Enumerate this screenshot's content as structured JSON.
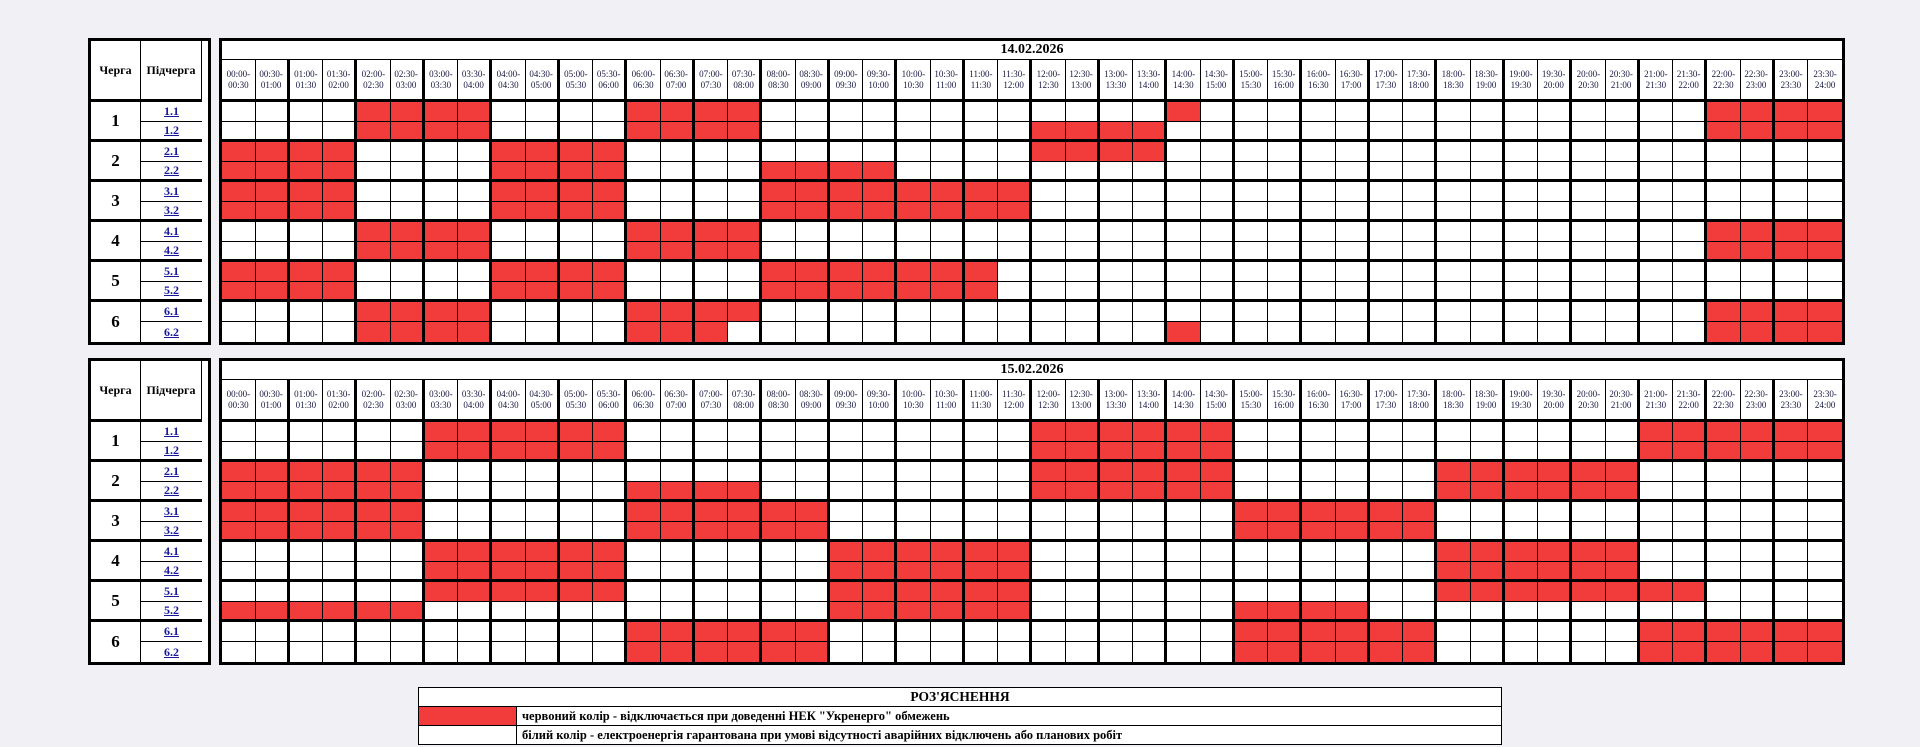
{
  "columns": {
    "queue_header": "Черга",
    "subqueue_header": "Підчерга"
  },
  "colors": {
    "outage_red": "#f23c3c",
    "guaranteed_white": "#ffffff",
    "page_bg": "#f0f0f5"
  },
  "legend": {
    "title": "РОЗ'ЯСНЕННЯ",
    "rows": [
      {
        "swatch": "#f23c3c",
        "text": "червоний колір - відключається при доведенні НЕК \"Укренерго\" обмежень"
      },
      {
        "swatch": "#ffffff",
        "text": "білий колір - електроенергія гарантована при умові відсутності аварійних відключень або планових робіт"
      }
    ]
  },
  "chart_data": {
    "type": "heatmap",
    "slot_minutes": 30,
    "slots_per_day": 48,
    "time_points": [
      "00:00",
      "00:30",
      "01:00",
      "01:30",
      "02:00",
      "02:30",
      "03:00",
      "03:30",
      "04:00",
      "04:30",
      "05:00",
      "05:30",
      "06:00",
      "06:30",
      "07:00",
      "07:30",
      "08:00",
      "08:30",
      "09:00",
      "09:30",
      "10:00",
      "10:30",
      "11:00",
      "11:30",
      "12:00",
      "12:30",
      "13:00",
      "13:30",
      "14:00",
      "14:30",
      "15:00",
      "15:30",
      "16:00",
      "16:30",
      "17:00",
      "17:30",
      "18:00",
      "18:30",
      "19:00",
      "19:30",
      "20:00",
      "20:30",
      "21:00",
      "21:30",
      "22:00",
      "22:30",
      "23:00",
      "23:30",
      "24:00"
    ],
    "tables": [
      {
        "date": "14.02.2026",
        "queues": [
          {
            "number": "1",
            "subs": [
              {
                "label": "1.1",
                "red_ranges": [
                  [
                    4,
                    7
                  ],
                  [
                    12,
                    15
                  ],
                  [
                    28,
                    28
                  ],
                  [
                    44,
                    47
                  ]
                ],
                "intervals": "02:00-04:00, 06:00-08:00, 14:00-14:30, 22:00-24:00"
              },
              {
                "label": "1.2",
                "red_ranges": [
                  [
                    4,
                    7
                  ],
                  [
                    12,
                    15
                  ],
                  [
                    24,
                    27
                  ],
                  [
                    44,
                    47
                  ]
                ],
                "intervals": "02:00-04:00, 06:00-08:00, 12:00-14:00, 22:00-24:00"
              }
            ]
          },
          {
            "number": "2",
            "subs": [
              {
                "label": "2.1",
                "red_ranges": [
                  [
                    0,
                    3
                  ],
                  [
                    8,
                    11
                  ],
                  [
                    24,
                    27
                  ]
                ],
                "intervals": "00:00-02:00, 04:00-06:00, 12:00-14:00"
              },
              {
                "label": "2.2",
                "red_ranges": [
                  [
                    0,
                    3
                  ],
                  [
                    8,
                    11
                  ],
                  [
                    16,
                    19
                  ]
                ],
                "intervals": "00:00-02:00, 04:00-06:00, 08:00-10:00"
              }
            ]
          },
          {
            "number": "3",
            "subs": [
              {
                "label": "3.1",
                "red_ranges": [
                  [
                    0,
                    3
                  ],
                  [
                    8,
                    11
                  ],
                  [
                    16,
                    23
                  ]
                ],
                "intervals": "00:00-02:00, 04:00-06:00, 08:00-12:00"
              },
              {
                "label": "3.2",
                "red_ranges": [
                  [
                    0,
                    3
                  ],
                  [
                    8,
                    11
                  ],
                  [
                    16,
                    23
                  ]
                ],
                "intervals": "00:00-02:00, 04:00-06:00, 08:00-12:00"
              }
            ]
          },
          {
            "number": "4",
            "subs": [
              {
                "label": "4.1",
                "red_ranges": [
                  [
                    4,
                    7
                  ],
                  [
                    12,
                    15
                  ],
                  [
                    44,
                    47
                  ]
                ],
                "intervals": "02:00-04:00, 06:00-08:00, 22:00-24:00"
              },
              {
                "label": "4.2",
                "red_ranges": [
                  [
                    4,
                    7
                  ],
                  [
                    12,
                    15
                  ],
                  [
                    44,
                    47
                  ]
                ],
                "intervals": "02:00-04:00, 06:00-08:00, 22:00-24:00"
              }
            ]
          },
          {
            "number": "5",
            "subs": [
              {
                "label": "5.1",
                "red_ranges": [
                  [
                    0,
                    3
                  ],
                  [
                    8,
                    11
                  ],
                  [
                    16,
                    22
                  ]
                ],
                "intervals": "00:00-02:00, 04:00-06:00, 08:00-11:30"
              },
              {
                "label": "5.2",
                "red_ranges": [
                  [
                    0,
                    3
                  ],
                  [
                    8,
                    11
                  ],
                  [
                    16,
                    22
                  ]
                ],
                "intervals": "00:00-02:00, 04:00-06:00, 08:00-11:30"
              }
            ]
          },
          {
            "number": "6",
            "subs": [
              {
                "label": "6.1",
                "red_ranges": [
                  [
                    4,
                    7
                  ],
                  [
                    12,
                    15
                  ],
                  [
                    44,
                    47
                  ]
                ],
                "intervals": "02:00-04:00, 06:00-08:00, 22:00-24:00"
              },
              {
                "label": "6.2",
                "red_ranges": [
                  [
                    4,
                    7
                  ],
                  [
                    12,
                    14
                  ],
                  [
                    28,
                    28
                  ],
                  [
                    44,
                    47
                  ]
                ],
                "intervals": "02:00-04:00, 06:00-07:30, 14:00-14:30, 22:00-24:00"
              }
            ]
          }
        ]
      },
      {
        "date": "15.02.2026",
        "queues": [
          {
            "number": "1",
            "subs": [
              {
                "label": "1.1",
                "red_ranges": [
                  [
                    6,
                    11
                  ],
                  [
                    24,
                    29
                  ],
                  [
                    42,
                    47
                  ]
                ],
                "intervals": "03:00-06:00, 12:00-15:00, 21:00-24:00"
              },
              {
                "label": "1.2",
                "red_ranges": [
                  [
                    6,
                    11
                  ],
                  [
                    24,
                    29
                  ],
                  [
                    42,
                    47
                  ]
                ],
                "intervals": "03:00-06:00, 12:00-15:00, 21:00-24:00"
              }
            ]
          },
          {
            "number": "2",
            "subs": [
              {
                "label": "2.1",
                "red_ranges": [
                  [
                    0,
                    5
                  ],
                  [
                    24,
                    29
                  ],
                  [
                    36,
                    41
                  ]
                ],
                "intervals": "00:00-03:00, 12:00-15:00, 18:00-21:00"
              },
              {
                "label": "2.2",
                "red_ranges": [
                  [
                    0,
                    5
                  ],
                  [
                    12,
                    15
                  ],
                  [
                    24,
                    29
                  ],
                  [
                    36,
                    41
                  ]
                ],
                "intervals": "00:00-03:00, 06:00-08:00, 12:00-15:00, 18:00-21:00"
              }
            ]
          },
          {
            "number": "3",
            "subs": [
              {
                "label": "3.1",
                "red_ranges": [
                  [
                    0,
                    5
                  ],
                  [
                    12,
                    17
                  ],
                  [
                    30,
                    35
                  ]
                ],
                "intervals": "00:00-03:00, 06:00-09:00, 15:00-18:00"
              },
              {
                "label": "3.2",
                "red_ranges": [
                  [
                    0,
                    5
                  ],
                  [
                    12,
                    17
                  ],
                  [
                    30,
                    35
                  ]
                ],
                "intervals": "00:00-03:00, 06:00-09:00, 15:00-18:00"
              }
            ]
          },
          {
            "number": "4",
            "subs": [
              {
                "label": "4.1",
                "red_ranges": [
                  [
                    6,
                    11
                  ],
                  [
                    18,
                    23
                  ],
                  [
                    36,
                    41
                  ]
                ],
                "intervals": "03:00-06:00, 09:00-12:00, 18:00-21:00"
              },
              {
                "label": "4.2",
                "red_ranges": [
                  [
                    6,
                    11
                  ],
                  [
                    18,
                    23
                  ],
                  [
                    36,
                    41
                  ]
                ],
                "intervals": "03:00-06:00, 09:00-12:00, 18:00-21:00"
              }
            ]
          },
          {
            "number": "5",
            "subs": [
              {
                "label": "5.1",
                "red_ranges": [
                  [
                    6,
                    11
                  ],
                  [
                    18,
                    23
                  ],
                  [
                    36,
                    43
                  ]
                ],
                "intervals": "03:00-06:00, 09:00-12:00, 18:00-22:00"
              },
              {
                "label": "5.2",
                "red_ranges": [
                  [
                    0,
                    5
                  ],
                  [
                    18,
                    23
                  ],
                  [
                    30,
                    33
                  ]
                ],
                "intervals": "00:00-03:00, 09:00-12:00, 15:00-17:00"
              }
            ]
          },
          {
            "number": "6",
            "subs": [
              {
                "label": "6.1",
                "red_ranges": [
                  [
                    12,
                    17
                  ],
                  [
                    30,
                    35
                  ],
                  [
                    42,
                    47
                  ]
                ],
                "intervals": "06:00-09:00, 15:00-18:00, 21:00-24:00"
              },
              {
                "label": "6.2",
                "red_ranges": [
                  [
                    12,
                    17
                  ],
                  [
                    30,
                    35
                  ],
                  [
                    42,
                    47
                  ]
                ],
                "intervals": "06:00-09:00, 15:00-18:00, 21:00-24:00"
              }
            ]
          }
        ]
      }
    ]
  }
}
